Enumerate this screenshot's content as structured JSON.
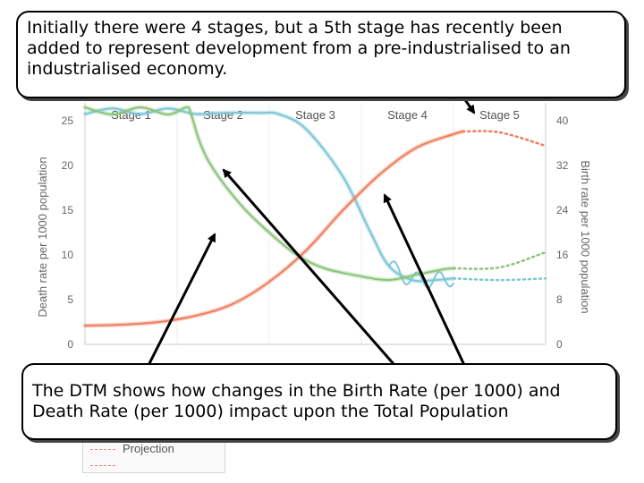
{
  "callouts": {
    "top": "Initially there were 4 stages, but a 5th stage has recently been added to represent development from a pre-industrialised to an industrialised economy.",
    "bottom": "The DTM shows how changes in the Birth Rate (per 1000) and Death Rate (per 1000) impact upon the Total Population"
  },
  "legend": {
    "projection_label": "Projection"
  },
  "chart_data": {
    "type": "line",
    "stages": [
      "Stage 1",
      "Stage 2",
      "Stage 3",
      "Stage 4",
      "Stage 5"
    ],
    "ylabel_left": "Death rate per 1000 population",
    "ylabel_right": "Birth rate per 1000 population",
    "y_left_ticks": [
      0,
      5,
      10,
      15,
      20,
      25
    ],
    "y_right_ticks": [
      0,
      8,
      16,
      24,
      32,
      40
    ],
    "ylim_left": [
      0,
      27
    ],
    "ylim_right": [
      0,
      43.2
    ],
    "x_range": [
      0,
      5
    ],
    "grid": true,
    "colors": {
      "birth": "#7ec6d8",
      "death": "#8cc47a",
      "population": "#ef7f5f",
      "axis_text": "#666666",
      "grid": "#eeeeee"
    },
    "series": [
      {
        "key": "birth",
        "axis": "right",
        "points": [
          [
            0,
            41.2
          ],
          [
            0.3,
            42.2
          ],
          [
            0.6,
            41.2
          ],
          [
            0.9,
            42.2
          ],
          [
            1.2,
            41.2
          ],
          [
            1.5,
            41.4
          ],
          [
            1.9,
            41.4
          ],
          [
            2.1,
            41.2
          ],
          [
            2.4,
            38.5
          ],
          [
            2.8,
            30
          ],
          [
            3.1,
            20
          ],
          [
            3.3,
            14
          ],
          [
            3.55,
            11.5
          ],
          [
            3.8,
            11.5
          ],
          [
            4.0,
            11.8
          ]
        ],
        "wave_from": 3.3,
        "wave_amp": 1.4,
        "projection": [
          [
            4.0,
            11.8
          ],
          [
            4.5,
            11.5
          ],
          [
            5.0,
            11.8
          ]
        ]
      },
      {
        "key": "death",
        "axis": "left",
        "points": [
          [
            0,
            26.5
          ],
          [
            0.3,
            25.7
          ],
          [
            0.6,
            26.5
          ],
          [
            0.9,
            25.7
          ],
          [
            1.1,
            26.5
          ],
          [
            1.15,
            25.8
          ],
          [
            1.25,
            22.5
          ],
          [
            1.4,
            19.5
          ],
          [
            1.7,
            15.5
          ],
          [
            2.0,
            12.5
          ],
          [
            2.3,
            10.0
          ],
          [
            2.6,
            8.5
          ],
          [
            3.0,
            7.6
          ],
          [
            3.3,
            7.2
          ],
          [
            3.6,
            7.8
          ],
          [
            3.9,
            8.4
          ],
          [
            4.0,
            8.5
          ]
        ],
        "projection": [
          [
            4.0,
            8.5
          ],
          [
            4.5,
            8.6
          ],
          [
            5.0,
            10.3
          ]
        ]
      },
      {
        "key": "population",
        "axis": "left",
        "points": [
          [
            0,
            2.1
          ],
          [
            0.4,
            2.2
          ],
          [
            0.8,
            2.5
          ],
          [
            1.2,
            3.2
          ],
          [
            1.6,
            4.5
          ],
          [
            2.0,
            7.0
          ],
          [
            2.4,
            10.5
          ],
          [
            2.8,
            15.0
          ],
          [
            3.2,
            19.0
          ],
          [
            3.6,
            22.0
          ],
          [
            4.0,
            23.5
          ],
          [
            4.1,
            23.8
          ]
        ],
        "projection": [
          [
            4.1,
            23.8
          ],
          [
            4.5,
            23.7
          ],
          [
            5.0,
            22.2
          ]
        ]
      }
    ]
  }
}
